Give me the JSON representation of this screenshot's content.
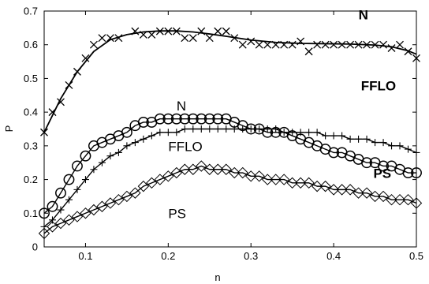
{
  "chart_data": {
    "type": "line",
    "title": "",
    "xlabel": "n",
    "ylabel": "P",
    "xlim": [
      0.05,
      0.5
    ],
    "ylim": [
      0,
      0.7
    ],
    "xticks": [
      0.1,
      0.2,
      0.3,
      0.4,
      0.5
    ],
    "xtick_labels": [
      "0.1",
      "0.2",
      "0.3",
      "0.4",
      "0.5"
    ],
    "yticks": [
      0,
      0.1,
      0.2,
      0.3,
      0.4,
      0.5,
      0.6,
      0.7
    ],
    "ytick_labels": [
      "0",
      "0.1",
      "0.2",
      "0.3",
      "0.4",
      "0.5",
      "0.6",
      "0.7"
    ],
    "grid": false,
    "colors": {
      "series": "#000000",
      "background": "#ffffff"
    },
    "series": [
      {
        "marker": "x",
        "style": "markers",
        "x": [
          0.05,
          0.06,
          0.07,
          0.08,
          0.09,
          0.1,
          0.11,
          0.12,
          0.13,
          0.14,
          0.16,
          0.17,
          0.18,
          0.19,
          0.2,
          0.21,
          0.22,
          0.23,
          0.24,
          0.25,
          0.26,
          0.27,
          0.28,
          0.29,
          0.3,
          0.31,
          0.32,
          0.33,
          0.34,
          0.35,
          0.36,
          0.37,
          0.38,
          0.39,
          0.4,
          0.41,
          0.42,
          0.43,
          0.44,
          0.45,
          0.46,
          0.47,
          0.48,
          0.49,
          0.5
        ],
        "y": [
          0.34,
          0.4,
          0.43,
          0.48,
          0.52,
          0.56,
          0.6,
          0.62,
          0.62,
          0.62,
          0.64,
          0.63,
          0.63,
          0.64,
          0.64,
          0.64,
          0.62,
          0.62,
          0.64,
          0.62,
          0.64,
          0.64,
          0.62,
          0.6,
          0.61,
          0.6,
          0.6,
          0.6,
          0.6,
          0.6,
          0.61,
          0.58,
          0.6,
          0.6,
          0.6,
          0.6,
          0.6,
          0.6,
          0.6,
          0.6,
          0.6,
          0.59,
          0.6,
          0.58,
          0.56
        ]
      },
      {
        "style": "line",
        "x": [
          0.05,
          0.07,
          0.09,
          0.11,
          0.13,
          0.15,
          0.17,
          0.19,
          0.21,
          0.23,
          0.25,
          0.27,
          0.3,
          0.33,
          0.36,
          0.39,
          0.42,
          0.45,
          0.47,
          0.49,
          0.5
        ],
        "y": [
          0.34,
          0.44,
          0.52,
          0.58,
          0.615,
          0.63,
          0.638,
          0.641,
          0.641,
          0.638,
          0.632,
          0.625,
          0.614,
          0.607,
          0.604,
          0.603,
          0.602,
          0.599,
          0.594,
          0.582,
          0.572
        ]
      },
      {
        "marker": "circle",
        "style": "markers-line",
        "x": [
          0.05,
          0.06,
          0.07,
          0.08,
          0.09,
          0.1,
          0.11,
          0.12,
          0.13,
          0.14,
          0.15,
          0.16,
          0.17,
          0.18,
          0.19,
          0.2,
          0.21,
          0.22,
          0.23,
          0.24,
          0.25,
          0.26,
          0.27,
          0.28,
          0.29,
          0.3,
          0.31,
          0.32,
          0.33,
          0.34,
          0.35,
          0.36,
          0.37,
          0.38,
          0.39,
          0.4,
          0.41,
          0.42,
          0.43,
          0.44,
          0.45,
          0.46,
          0.47,
          0.48,
          0.49,
          0.5
        ],
        "y": [
          0.1,
          0.12,
          0.16,
          0.2,
          0.24,
          0.27,
          0.3,
          0.31,
          0.32,
          0.33,
          0.34,
          0.36,
          0.37,
          0.37,
          0.38,
          0.38,
          0.38,
          0.38,
          0.38,
          0.38,
          0.38,
          0.38,
          0.38,
          0.37,
          0.36,
          0.35,
          0.35,
          0.34,
          0.34,
          0.34,
          0.33,
          0.32,
          0.31,
          0.3,
          0.29,
          0.28,
          0.28,
          0.27,
          0.26,
          0.25,
          0.25,
          0.24,
          0.24,
          0.23,
          0.22,
          0.22
        ]
      },
      {
        "marker": "plus",
        "style": "markers-line",
        "x": [
          0.05,
          0.06,
          0.07,
          0.08,
          0.09,
          0.1,
          0.11,
          0.12,
          0.13,
          0.14,
          0.15,
          0.16,
          0.17,
          0.18,
          0.19,
          0.2,
          0.21,
          0.22,
          0.23,
          0.24,
          0.25,
          0.26,
          0.27,
          0.28,
          0.29,
          0.3,
          0.31,
          0.32,
          0.33,
          0.34,
          0.35,
          0.36,
          0.37,
          0.38,
          0.39,
          0.4,
          0.41,
          0.42,
          0.43,
          0.44,
          0.45,
          0.46,
          0.47,
          0.48,
          0.49,
          0.5
        ],
        "y": [
          0.06,
          0.08,
          0.11,
          0.14,
          0.17,
          0.2,
          0.23,
          0.25,
          0.27,
          0.28,
          0.3,
          0.31,
          0.32,
          0.33,
          0.34,
          0.34,
          0.34,
          0.35,
          0.35,
          0.35,
          0.35,
          0.35,
          0.35,
          0.35,
          0.35,
          0.35,
          0.35,
          0.35,
          0.35,
          0.34,
          0.34,
          0.34,
          0.34,
          0.34,
          0.33,
          0.33,
          0.33,
          0.32,
          0.32,
          0.32,
          0.31,
          0.31,
          0.3,
          0.3,
          0.29,
          0.28
        ]
      },
      {
        "marker": "diamond",
        "style": "markers-line",
        "x": [
          0.05,
          0.06,
          0.07,
          0.08,
          0.09,
          0.1,
          0.11,
          0.12,
          0.13,
          0.14,
          0.15,
          0.16,
          0.17,
          0.18,
          0.19,
          0.2,
          0.21,
          0.22,
          0.23,
          0.24,
          0.25,
          0.26,
          0.27,
          0.28,
          0.29,
          0.3,
          0.31,
          0.32,
          0.33,
          0.34,
          0.35,
          0.36,
          0.37,
          0.38,
          0.39,
          0.4,
          0.41,
          0.42,
          0.43,
          0.44,
          0.45,
          0.46,
          0.47,
          0.48,
          0.49,
          0.5
        ],
        "y": [
          0.04,
          0.06,
          0.07,
          0.08,
          0.09,
          0.1,
          0.11,
          0.12,
          0.13,
          0.14,
          0.15,
          0.16,
          0.18,
          0.19,
          0.2,
          0.21,
          0.22,
          0.23,
          0.23,
          0.24,
          0.23,
          0.23,
          0.23,
          0.22,
          0.22,
          0.21,
          0.21,
          0.2,
          0.2,
          0.2,
          0.19,
          0.19,
          0.19,
          0.18,
          0.18,
          0.17,
          0.17,
          0.17,
          0.16,
          0.16,
          0.15,
          0.15,
          0.14,
          0.14,
          0.14,
          0.13
        ]
      }
    ],
    "annotations": [
      {
        "text": "N",
        "bold": true,
        "x": 0.43,
        "y": 0.675
      },
      {
        "text": "FFLO",
        "bold": true,
        "x": 0.433,
        "y": 0.465
      },
      {
        "text": "N",
        "bold": false,
        "x": 0.21,
        "y": 0.405
      },
      {
        "text": "FFLO",
        "bold": false,
        "x": 0.2,
        "y": 0.285
      },
      {
        "text": "PS",
        "bold": true,
        "x": 0.448,
        "y": 0.205
      },
      {
        "text": "PS",
        "bold": false,
        "x": 0.2,
        "y": 0.085
      }
    ]
  }
}
